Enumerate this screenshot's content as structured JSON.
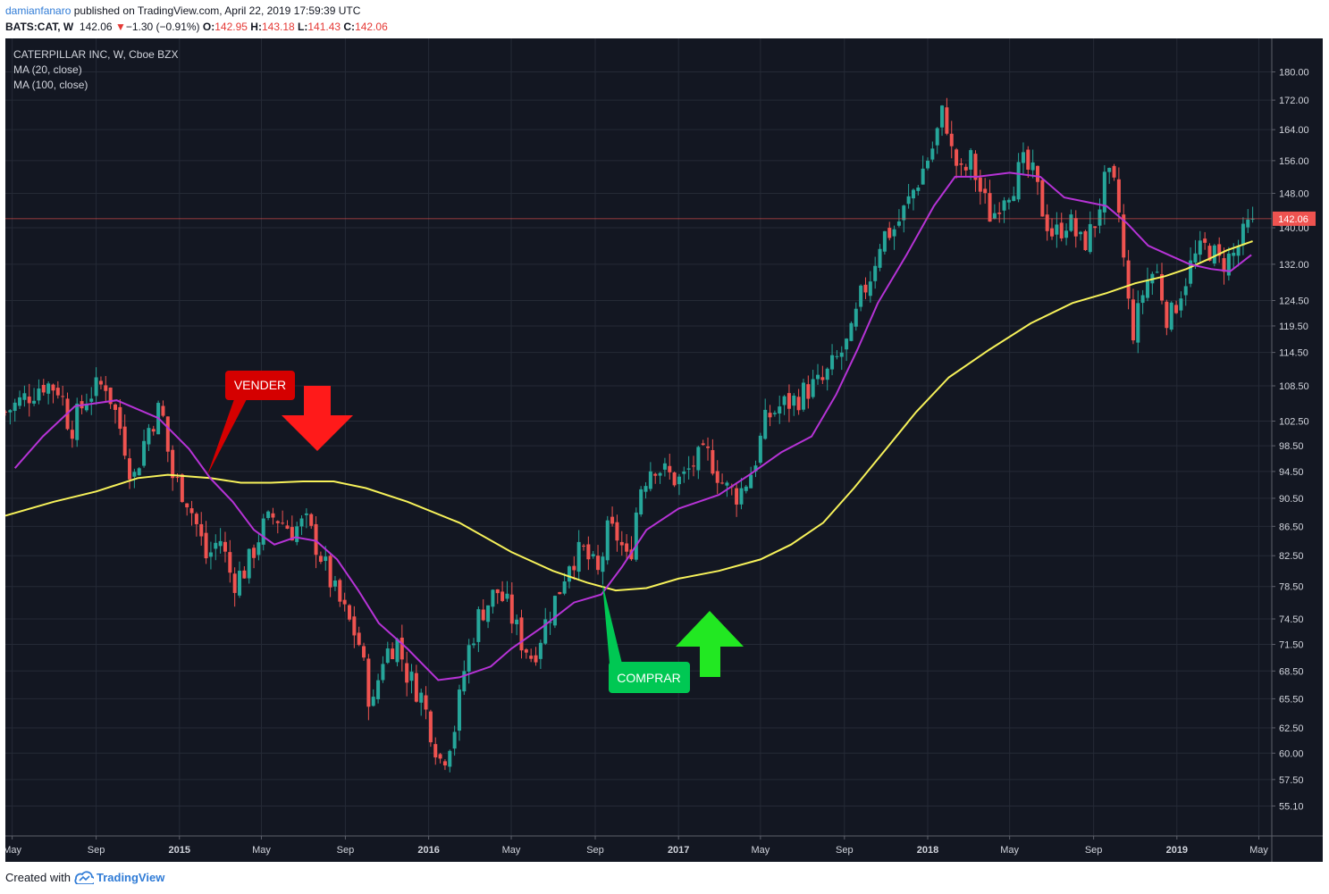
{
  "header": {
    "user": "damianfanaro",
    "published": " published on TradingView.com, April 22, 2019 17:59:39 UTC",
    "symbol": "BATS:CAT, W",
    "last": "142.06",
    "change": "−1.30 (−0.91%)",
    "o_label": "O:",
    "o_value": "142.95",
    "h_label": "H:",
    "h_value": "143.18",
    "l_label": "L:",
    "l_value": "141.43",
    "c_label": "C:",
    "c_value": "142.06"
  },
  "legend": {
    "title": "CATERPILLAR INC, W, Cboe BZX",
    "ma20": "MA (20, close)",
    "ma100": "MA (100, close)"
  },
  "annotations": {
    "sell": "VENDER",
    "buy": "COMPRAR"
  },
  "footer": {
    "created_with": "Created with",
    "brand": "TradingView"
  },
  "colors": {
    "background": "#131722",
    "up": "#26a69a",
    "down": "#ef5350",
    "ma20": "#b633d6",
    "ma100": "#f7f25a",
    "sell_label": "#d50000",
    "buy_label": "#00c853",
    "sell_arrow": "#ff1a1a",
    "buy_arrow": "#22e822"
  },
  "chart_data": {
    "type": "candlestick",
    "y_scale": "log",
    "ylim": [
      52.5,
      190
    ],
    "y_ticks": [
      "180.00",
      "172.00",
      "164.00",
      "156.00",
      "148.00",
      "140.00",
      "132.00",
      "124.50",
      "119.50",
      "114.50",
      "108.50",
      "102.50",
      "98.50",
      "94.50",
      "90.50",
      "86.50",
      "82.50",
      "78.50",
      "74.50",
      "71.50",
      "68.50",
      "65.50",
      "62.50",
      "60.00",
      "57.50",
      "55.10"
    ],
    "x_ticks": [
      "May",
      "Sep",
      "2015",
      "May",
      "Sep",
      "2016",
      "May",
      "Sep",
      "2017",
      "May",
      "Sep",
      "2018",
      "May",
      "Sep",
      "2019",
      "May"
    ],
    "x_tick_dates": [
      "2014-05",
      "2014-09",
      "2015-01",
      "2015-05",
      "2015-09",
      "2016-01",
      "2016-05",
      "2016-09",
      "2017-01",
      "2017-05",
      "2017-09",
      "2018-01",
      "2018-05",
      "2018-09",
      "2019-01",
      "2019-05"
    ],
    "x_range": [
      "2014-04-21",
      "2019-05-20"
    ],
    "last_price": "142.06",
    "series": [
      {
        "name": "MA (20, close)",
        "type": "line",
        "points": [
          [
            "2014-05-05",
            95
          ],
          [
            "2014-06-15",
            100
          ],
          [
            "2014-08-01",
            105
          ],
          [
            "2014-10-01",
            106
          ],
          [
            "2014-12-01",
            103
          ],
          [
            "2015-01-15",
            98
          ],
          [
            "2015-02-15",
            93.5
          ],
          [
            "2015-03-20",
            90
          ],
          [
            "2015-04-20",
            86
          ],
          [
            "2015-05-20",
            84
          ],
          [
            "2015-06-20",
            85
          ],
          [
            "2015-07-20",
            84.5
          ],
          [
            "2015-08-20",
            82
          ],
          [
            "2015-09-20",
            78
          ],
          [
            "2015-10-20",
            74
          ],
          [
            "2015-12-01",
            71
          ],
          [
            "2016-01-15",
            67.5
          ],
          [
            "2016-02-15",
            67.8
          ],
          [
            "2016-04-01",
            69
          ],
          [
            "2016-05-01",
            71
          ],
          [
            "2016-06-15",
            73.5
          ],
          [
            "2016-08-01",
            76.5
          ],
          [
            "2016-09-10",
            77.5
          ],
          [
            "2016-10-10",
            81
          ],
          [
            "2016-11-15",
            86
          ],
          [
            "2017-01-01",
            89
          ],
          [
            "2017-03-01",
            91
          ],
          [
            "2017-04-15",
            94
          ],
          [
            "2017-06-01",
            97.5
          ],
          [
            "2017-07-15",
            100
          ],
          [
            "2017-08-20",
            107
          ],
          [
            "2017-09-20",
            115
          ],
          [
            "2017-10-20",
            124
          ],
          [
            "2017-12-01",
            134
          ],
          [
            "2018-01-10",
            145
          ],
          [
            "2018-02-10",
            152
          ],
          [
            "2018-03-15",
            152
          ],
          [
            "2018-05-01",
            153
          ],
          [
            "2018-06-15",
            152
          ],
          [
            "2018-07-20",
            147
          ],
          [
            "2018-08-20",
            146
          ],
          [
            "2018-09-20",
            145
          ],
          [
            "2018-10-20",
            141
          ],
          [
            "2018-11-20",
            136
          ],
          [
            "2018-12-20",
            134
          ],
          [
            "2019-01-20",
            132
          ],
          [
            "2019-02-20",
            131
          ],
          [
            "2019-03-20",
            130.5
          ],
          [
            "2019-04-20",
            134
          ]
        ]
      },
      {
        "name": "MA (100, close)",
        "type": "line",
        "points": [
          [
            "2014-04-21",
            88
          ],
          [
            "2014-07-01",
            90
          ],
          [
            "2014-09-01",
            91.5
          ],
          [
            "2014-11-01",
            93.5
          ],
          [
            "2014-12-15",
            94
          ],
          [
            "2015-02-15",
            93.5
          ],
          [
            "2015-04-01",
            92.8
          ],
          [
            "2015-05-15",
            92.8
          ],
          [
            "2015-07-01",
            93
          ],
          [
            "2015-08-15",
            93
          ],
          [
            "2015-10-01",
            92
          ],
          [
            "2015-12-01",
            90
          ],
          [
            "2016-02-15",
            87
          ],
          [
            "2016-05-01",
            83
          ],
          [
            "2016-07-01",
            80.5
          ],
          [
            "2016-08-20",
            79
          ],
          [
            "2016-10-01",
            78
          ],
          [
            "2016-11-15",
            78.3
          ],
          [
            "2017-01-01",
            79.5
          ],
          [
            "2017-03-01",
            80.5
          ],
          [
            "2017-05-01",
            82
          ],
          [
            "2017-06-15",
            84
          ],
          [
            "2017-08-01",
            87
          ],
          [
            "2017-09-15",
            92
          ],
          [
            "2017-11-01",
            98
          ],
          [
            "2017-12-15",
            104
          ],
          [
            "2018-02-01",
            110
          ],
          [
            "2018-04-01",
            115
          ],
          [
            "2018-06-01",
            120
          ],
          [
            "2018-08-01",
            124
          ],
          [
            "2018-09-20",
            126
          ],
          [
            "2018-11-01",
            128
          ],
          [
            "2018-12-15",
            129.5
          ],
          [
            "2019-01-15",
            131
          ],
          [
            "2019-02-15",
            133
          ],
          [
            "2019-03-15",
            135
          ],
          [
            "2019-04-22",
            137
          ]
        ]
      },
      {
        "name": "CAT weekly close",
        "type": "candles",
        "close_anchors": [
          [
            "2014-04-21",
            104
          ],
          [
            "2014-05-15",
            106
          ],
          [
            "2014-06-15",
            109
          ],
          [
            "2014-07-10",
            108
          ],
          [
            "2014-07-25",
            101
          ],
          [
            "2014-08-20",
            107
          ],
          [
            "2014-09-15",
            109
          ],
          [
            "2014-10-10",
            100
          ],
          [
            "2014-10-25",
            93
          ],
          [
            "2014-11-15",
            101
          ],
          [
            "2014-12-05",
            105
          ],
          [
            "2014-12-20",
            94
          ],
          [
            "2015-01-10",
            91
          ],
          [
            "2015-01-25",
            87
          ],
          [
            "2015-02-10",
            82
          ],
          [
            "2015-03-01",
            85
          ],
          [
            "2015-03-20",
            79
          ],
          [
            "2015-04-10",
            81
          ],
          [
            "2015-05-01",
            86
          ],
          [
            "2015-05-20",
            88
          ],
          [
            "2015-06-15",
            86
          ],
          [
            "2015-07-05",
            87
          ],
          [
            "2015-07-25",
            83
          ],
          [
            "2015-08-15",
            78
          ],
          [
            "2015-09-01",
            75
          ],
          [
            "2015-09-20",
            72
          ],
          [
            "2015-10-10",
            64
          ],
          [
            "2015-10-25",
            70
          ],
          [
            "2015-11-15",
            72
          ],
          [
            "2015-12-01",
            68
          ],
          [
            "2015-12-20",
            66
          ],
          [
            "2016-01-10",
            61
          ],
          [
            "2016-01-20",
            59
          ],
          [
            "2016-02-10",
            63
          ],
          [
            "2016-02-25",
            70
          ],
          [
            "2016-03-15",
            75
          ],
          [
            "2016-04-10",
            78
          ],
          [
            "2016-04-25",
            76
          ],
          [
            "2016-05-15",
            72
          ],
          [
            "2016-06-01",
            70
          ],
          [
            "2016-06-20",
            74
          ],
          [
            "2016-07-10",
            78
          ],
          [
            "2016-07-25",
            82
          ],
          [
            "2016-08-15",
            83
          ],
          [
            "2016-09-05",
            80
          ],
          [
            "2016-09-20",
            86
          ],
          [
            "2016-10-05",
            85
          ],
          [
            "2016-10-20",
            81
          ],
          [
            "2016-11-05",
            92
          ],
          [
            "2016-11-25",
            96
          ],
          [
            "2016-12-15",
            94
          ],
          [
            "2017-01-05",
            93
          ],
          [
            "2017-01-25",
            96
          ],
          [
            "2017-02-15",
            97
          ],
          [
            "2017-03-10",
            92
          ],
          [
            "2017-03-30",
            91
          ],
          [
            "2017-04-20",
            95
          ],
          [
            "2017-05-10",
            103
          ],
          [
            "2017-05-30",
            105
          ],
          [
            "2017-06-20",
            106
          ],
          [
            "2017-07-10",
            108
          ],
          [
            "2017-07-30",
            109
          ],
          [
            "2017-08-20",
            113
          ],
          [
            "2017-09-10",
            117
          ],
          [
            "2017-09-25",
            125
          ],
          [
            "2017-10-10",
            130
          ],
          [
            "2017-10-25",
            138
          ],
          [
            "2017-11-15",
            140
          ],
          [
            "2017-12-01",
            145
          ],
          [
            "2017-12-20",
            152
          ],
          [
            "2018-01-10",
            160
          ],
          [
            "2018-01-25",
            170
          ],
          [
            "2018-02-05",
            158
          ],
          [
            "2018-02-20",
            152
          ],
          [
            "2018-03-05",
            156
          ],
          [
            "2018-03-20",
            148
          ],
          [
            "2018-04-05",
            142
          ],
          [
            "2018-04-20",
            148
          ],
          [
            "2018-05-05",
            150
          ],
          [
            "2018-05-20",
            155
          ],
          [
            "2018-06-05",
            152
          ],
          [
            "2018-06-20",
            143
          ],
          [
            "2018-07-05",
            138
          ],
          [
            "2018-07-25",
            142
          ],
          [
            "2018-08-15",
            136
          ],
          [
            "2018-09-01",
            140
          ],
          [
            "2018-09-20",
            152
          ],
          [
            "2018-10-05",
            148
          ],
          [
            "2018-10-20",
            125
          ],
          [
            "2018-10-30",
            118
          ],
          [
            "2018-11-15",
            128
          ],
          [
            "2018-12-01",
            131
          ],
          [
            "2018-12-20",
            120
          ],
          [
            "2019-01-05",
            126
          ],
          [
            "2019-01-25",
            133
          ],
          [
            "2019-02-15",
            136
          ],
          [
            "2019-03-05",
            132
          ],
          [
            "2019-03-25",
            134
          ],
          [
            "2019-04-08",
            138
          ],
          [
            "2019-04-22",
            142.06
          ]
        ]
      }
    ]
  }
}
